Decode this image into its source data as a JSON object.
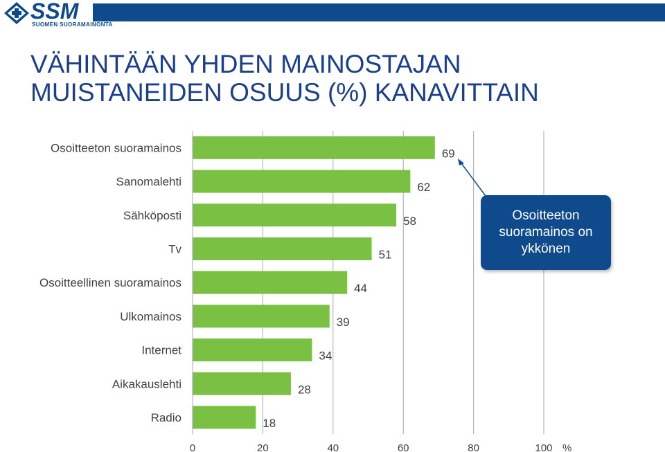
{
  "brand": {
    "logo_text": "SSM",
    "tagline": "SUOMEN SUORAMAINONTA",
    "bar_color": "#0f4a8c"
  },
  "title": {
    "line1": "VÄHINTÄÄN YHDEN MAINOSTAJAN",
    "line2": "MUISTANEIDEN OSUUS (%) KANAVITTAIN",
    "color": "#1b3f8b"
  },
  "callout": {
    "text": "Osoitteeton suoramainos on ykkönen",
    "color": "#0f4a8c"
  },
  "chart_data": {
    "type": "bar",
    "orientation": "horizontal",
    "categories": [
      "Osoitteeton suoramainos",
      "Sanomalehti",
      "Sähköposti",
      "Tv",
      "Osoitteellinen suoramainos",
      "Ulkomainos",
      "Internet",
      "Aikakauslehti",
      "Radio"
    ],
    "values": [
      69,
      62,
      58,
      51,
      44,
      39,
      34,
      28,
      18
    ],
    "xlim": [
      0,
      100
    ],
    "xticks": [
      "0",
      "20",
      "40",
      "60",
      "80",
      "100"
    ],
    "xunit": "%",
    "grid": true,
    "bar_color": "#7ac143"
  }
}
